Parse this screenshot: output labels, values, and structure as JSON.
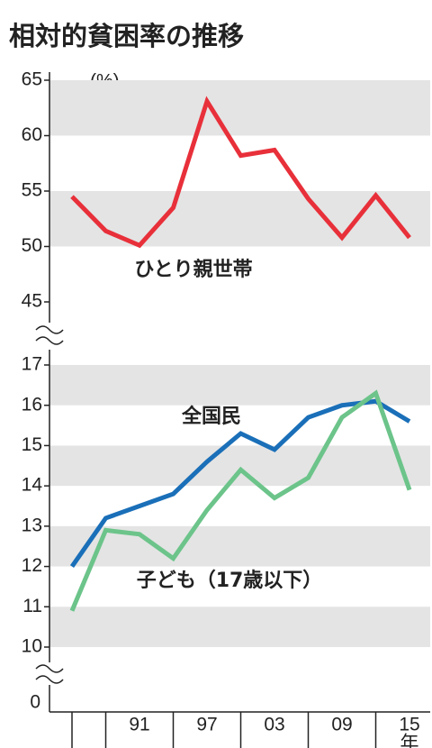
{
  "chart_data": [
    {
      "type": "line",
      "title": "相対的貧困率の推移",
      "unit": "(%)",
      "categories": [
        null,
        null,
        "91",
        null,
        "97",
        null,
        "03",
        null,
        "09",
        null,
        "15"
      ],
      "x_label": "年",
      "ylim": [
        45,
        65
      ],
      "yticks": [
        45,
        50,
        55,
        60,
        65
      ],
      "grid": "bands",
      "series": [
        {
          "name": "ひとり親世帯",
          "color": "#e8303a",
          "values": [
            54.5,
            51.4,
            50.1,
            53.5,
            63.1,
            58.2,
            58.7,
            54.3,
            50.8,
            54.6,
            50.8
          ]
        }
      ]
    },
    {
      "type": "line",
      "axis_origin": 0,
      "ylim": [
        10,
        17
      ],
      "yticks": [
        10,
        11,
        12,
        13,
        14,
        15,
        16,
        17
      ],
      "grid": "bands",
      "series": [
        {
          "name": "全国民",
          "color": "#1a6fb8",
          "values": [
            12.0,
            13.2,
            13.5,
            13.8,
            14.6,
            15.3,
            14.9,
            15.7,
            16.0,
            16.1,
            15.6
          ]
        },
        {
          "name": "子ども（17歳以下）",
          "color": "#6cc48a",
          "values": [
            10.9,
            12.9,
            12.8,
            12.2,
            13.4,
            14.4,
            13.7,
            14.2,
            15.7,
            16.3,
            13.9
          ]
        }
      ]
    }
  ]
}
